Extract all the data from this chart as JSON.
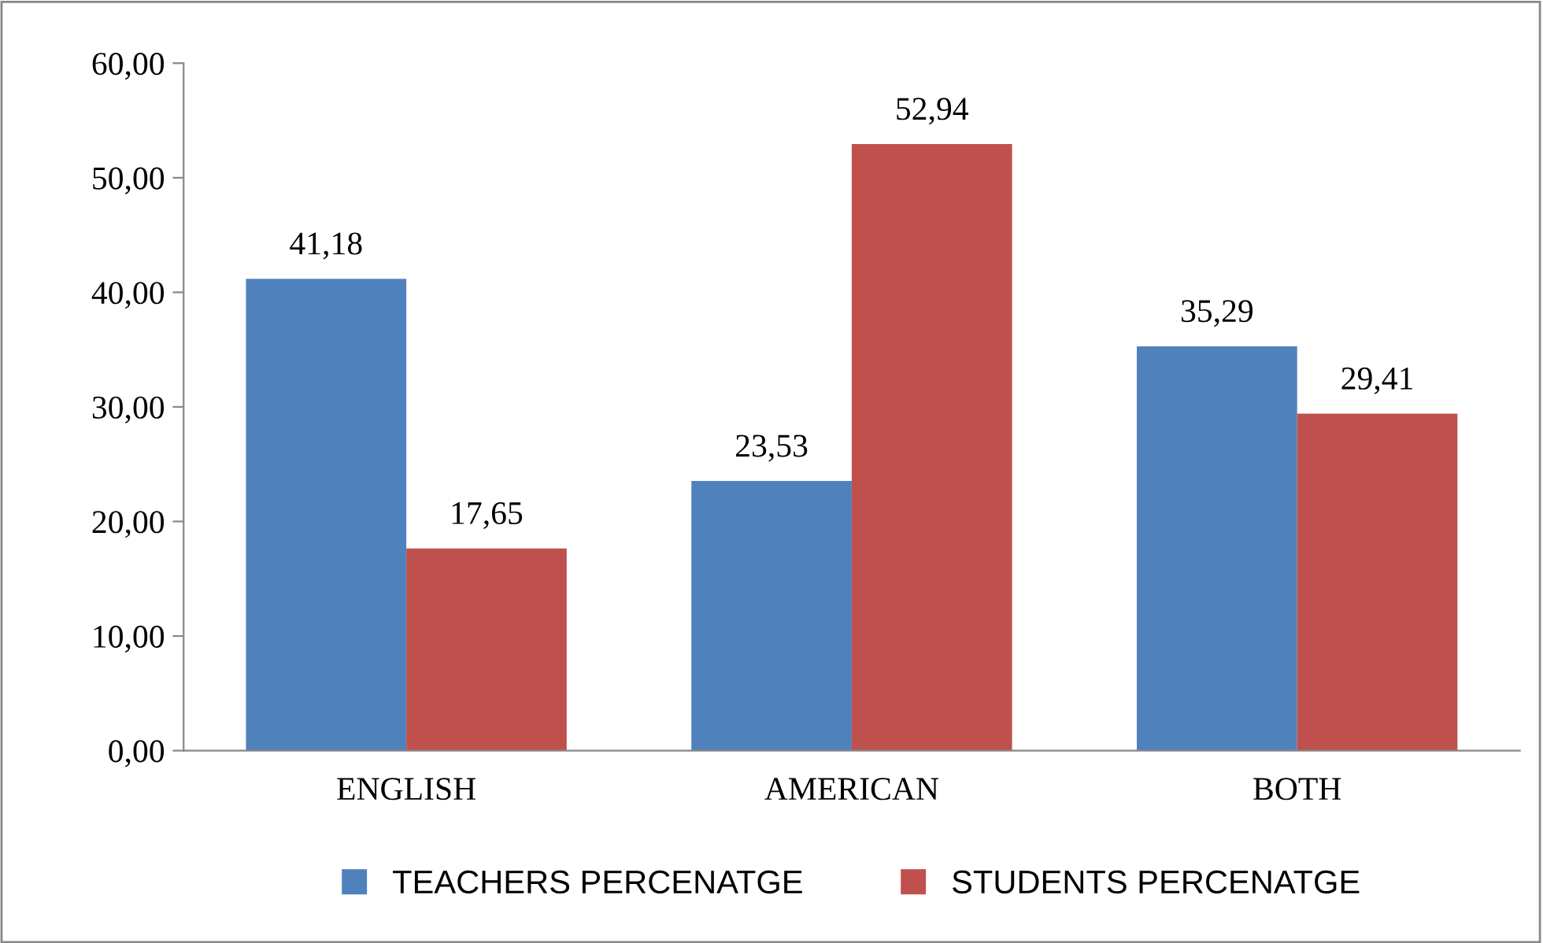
{
  "chart_data": {
    "type": "bar",
    "categories": [
      "ENGLISH",
      "AMERICAN",
      "BOTH"
    ],
    "series": [
      {
        "name": "TEACHERS PERCENATGE",
        "color": "#4f81bd",
        "values": [
          41.18,
          23.53,
          35.29
        ],
        "value_labels": [
          "41,18",
          "23,53",
          "35,29"
        ]
      },
      {
        "name": "STUDENTS PERCENATGE",
        "color": "#c0504d",
        "values": [
          17.65,
          52.94,
          29.41
        ],
        "value_labels": [
          "17,65",
          "52,94",
          "29,41"
        ]
      }
    ],
    "ylim": [
      0,
      60
    ],
    "yticks": [
      {
        "value": 0,
        "label": "0,00"
      },
      {
        "value": 10,
        "label": "10,00"
      },
      {
        "value": 20,
        "label": "20,00"
      },
      {
        "value": 30,
        "label": "30,00"
      },
      {
        "value": 40,
        "label": "40,00"
      },
      {
        "value": 50,
        "label": "50,00"
      },
      {
        "value": 60,
        "label": "60,00"
      }
    ],
    "grid": false,
    "legend": "bottom"
  }
}
